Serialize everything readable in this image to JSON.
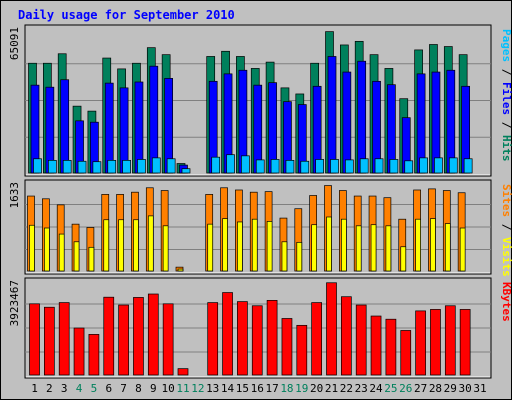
{
  "chart_data": {
    "type": "bar",
    "title": "Daily usage for September 2010",
    "colors": {
      "hits": "#00805c",
      "files": "#0000ff",
      "pages": "#00c0ff",
      "sites": "#ff8000",
      "visits": "#ffff00",
      "kbytes": "#ff0000",
      "title": "#0000ff",
      "background": "#c0c0c0",
      "panel": "#c0c0c0",
      "weekend": "#00805c",
      "weekday": "#000000"
    },
    "categories": [
      "1",
      "2",
      "3",
      "4",
      "5",
      "6",
      "7",
      "8",
      "9",
      "10",
      "11",
      "12",
      "13",
      "14",
      "15",
      "16",
      "17",
      "18",
      "19",
      "20",
      "21",
      "22",
      "23",
      "24",
      "25",
      "26",
      "27",
      "28",
      "29",
      "30",
      "31"
    ],
    "weekend_days": [
      4,
      5,
      11,
      12,
      18,
      19,
      25,
      26
    ],
    "panels": [
      {
        "id": "top",
        "max_label": "65091",
        "ymax": 65091,
        "legend": [
          {
            "text": "Pages",
            "color": "#00c0ff"
          },
          {
            "text": " / ",
            "color": "#000000"
          },
          {
            "text": "Files",
            "color": "#0000ff"
          },
          {
            "text": " / ",
            "color": "#000000"
          },
          {
            "text": "Hits",
            "color": "#00805c"
          }
        ],
        "series": [
          {
            "name": "Hits",
            "color": "#00805c",
            "values": [
              48600,
              48600,
              52800,
              29600,
              27400,
              50900,
              46100,
              48600,
              55500,
              52400,
              4200,
              0,
              51600,
              53900,
              51600,
              46300,
              49100,
              37700,
              35000,
              48600,
              62600,
              56700,
              58300,
              52400,
              46300,
              32900,
              54500,
              56900,
              56000,
              52400,
              0
            ]
          },
          {
            "name": "Files",
            "color": "#0000ff",
            "values": [
              38900,
              38000,
              41300,
              23100,
              22500,
              39800,
              37700,
              40300,
              47300,
              41900,
              3500,
              0,
              40600,
              43900,
              45500,
              38900,
              40000,
              31600,
              30300,
              38400,
              51600,
              44700,
              49500,
              40600,
              39100,
              24500,
              43900,
              44700,
              45500,
              38400,
              0
            ]
          },
          {
            "name": "Pages",
            "color": "#00c0ff",
            "values": [
              6300,
              5600,
              5600,
              5200,
              5000,
              5600,
              5600,
              6000,
              6700,
              6300,
              1900,
              0,
              7000,
              8100,
              7600,
              5800,
              6000,
              5600,
              5200,
              6000,
              6000,
              5800,
              6300,
              6300,
              6000,
              5400,
              6700,
              6700,
              6700,
              6300,
              0
            ]
          }
        ]
      },
      {
        "id": "middle",
        "max_label": "1633",
        "ymax": 1633,
        "legend": [
          {
            "text": "Sites",
            "color": "#ff8000"
          },
          {
            "text": " / ",
            "color": "#000000"
          },
          {
            "text": "Visits",
            "color": "#ffff00"
          }
        ],
        "series": [
          {
            "name": "Visits",
            "color": "#ff8000",
            "values": [
              1360,
              1310,
              1200,
              850,
              790,
              1390,
              1390,
              1430,
              1510,
              1460,
              70,
              0,
              1390,
              1510,
              1470,
              1430,
              1440,
              960,
              1130,
              1370,
              1550,
              1460,
              1360,
              1360,
              1330,
              940,
              1470,
              1490,
              1460,
              1420,
              0
            ]
          },
          {
            "name": "Sites",
            "color": "#ffff00",
            "values": [
              830,
              780,
              670,
              530,
              430,
              930,
              930,
              930,
              1000,
              820,
              35,
              0,
              850,
              950,
              890,
              940,
              900,
              530,
              520,
              840,
              980,
              940,
              820,
              840,
              820,
              440,
              940,
              950,
              860,
              780,
              0
            ]
          }
        ]
      },
      {
        "id": "bottom",
        "max_label": "3923467",
        "ymax": 3923467,
        "legend": [
          {
            "text": "KBytes",
            "color": "#ff0000"
          }
        ],
        "series": [
          {
            "name": "KBytes",
            "color": "#ff0000",
            "values": [
              2910000,
              2770000,
              2960000,
              1920000,
              1660000,
              3180000,
              2860000,
              3170000,
              3310000,
              2910000,
              260000,
              0,
              2960000,
              3370000,
              3000000,
              2830000,
              3050000,
              2310000,
              2030000,
              2960000,
              3770000,
              3200000,
              2860000,
              2410000,
              2280000,
              1820000,
              2620000,
              2680000,
              2830000,
              2680000,
              0
            ]
          }
        ]
      }
    ]
  }
}
